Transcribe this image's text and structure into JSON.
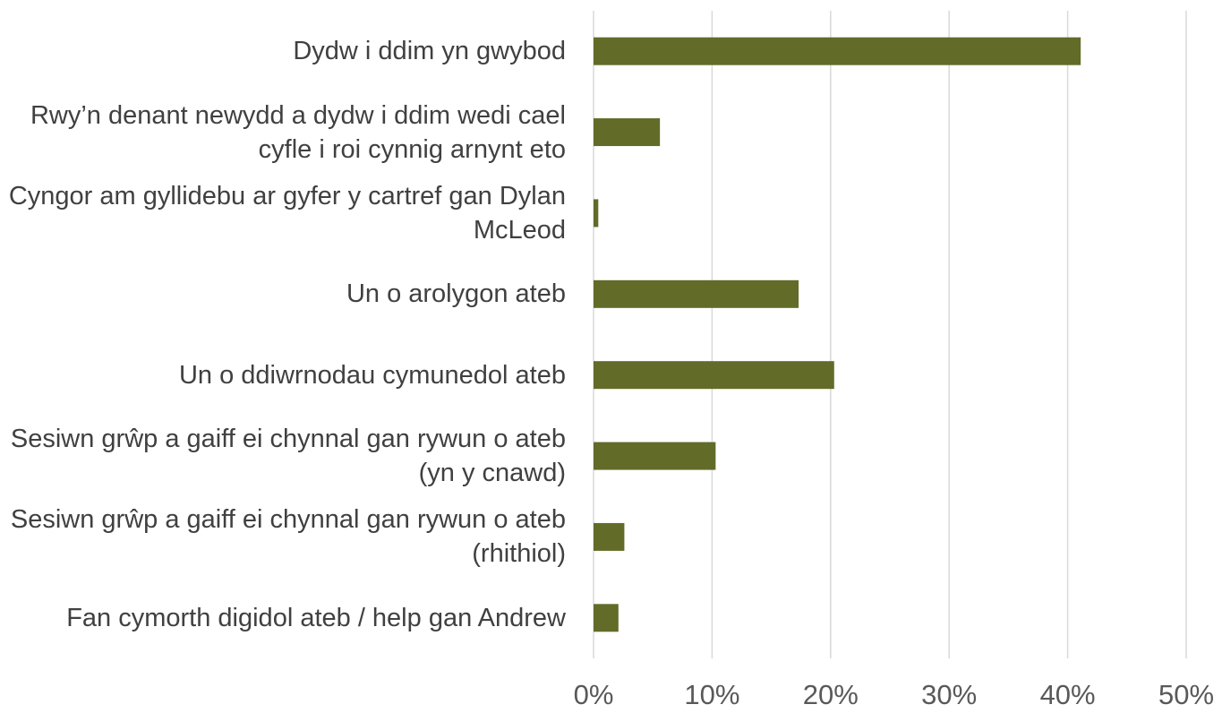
{
  "chart_data": {
    "type": "barh",
    "categories": [
      "Dydw i ddim yn gwybod",
      "Rwy’n denant newydd a dydw i ddim wedi cael cyfle i roi cynnig arnynt eto",
      "Cyngor am gyllidebu ar gyfer y cartref gan Dylan McLeod",
      "Un o arolygon ateb",
      "Un o ddiwrnodau cymunedol ateb",
      "Sesiwn grŵp a gaiff ei chynnal gan rywun o ateb (yn y cnawd)",
      "Sesiwn grŵp a gaiff ei chynnal gan rywun o ateb (rhithiol)",
      "Fan cymorth digidol ateb / help gan Andrew"
    ],
    "values": [
      41.1,
      5.6,
      0.4,
      17.3,
      20.3,
      10.3,
      2.6,
      2.1
    ],
    "color": "#626b28",
    "xlim": [
      0,
      50
    ],
    "xticks": [
      {
        "value": 0,
        "label": "0%"
      },
      {
        "value": 10,
        "label": "10%"
      },
      {
        "value": 20,
        "label": "20%"
      },
      {
        "value": 30,
        "label": "30%"
      },
      {
        "value": 40,
        "label": "40%"
      },
      {
        "value": 50,
        "label": "50%"
      }
    ],
    "grid": true
  }
}
